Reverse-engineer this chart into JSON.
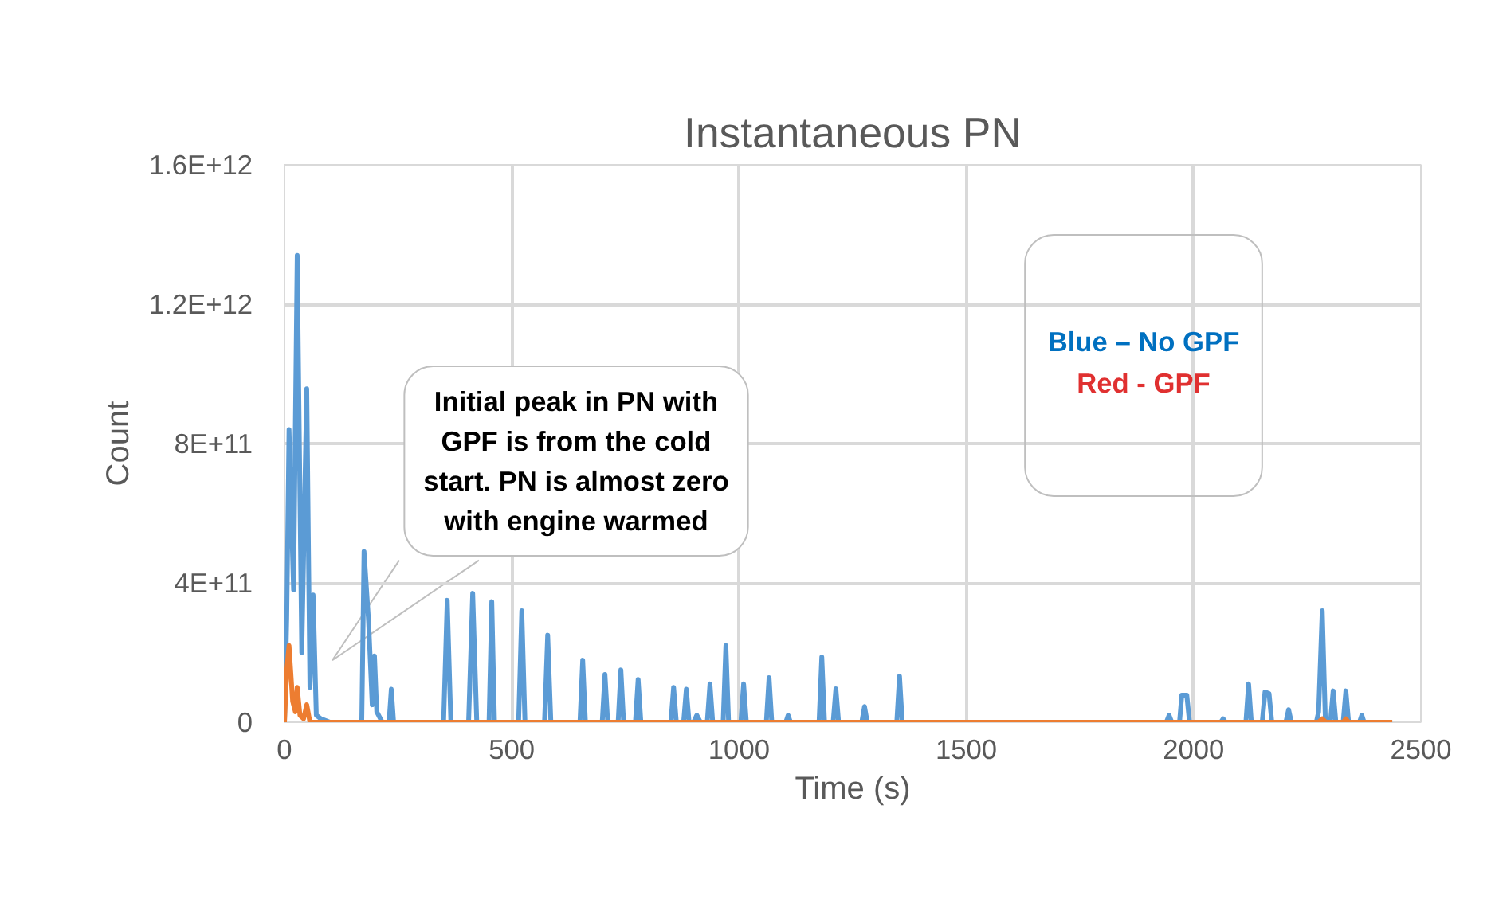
{
  "chart_data": {
    "type": "line",
    "title": "Instantaneous PN",
    "xlabel": "Time (s)",
    "ylabel": "Count",
    "xlim": [
      0,
      2500
    ],
    "xticks": [
      0,
      500,
      1000,
      1500,
      2000,
      2500
    ],
    "ylim": [
      0,
      1600000000000
    ],
    "yticks": [
      {
        "value": 0,
        "label": "0"
      },
      {
        "value": 400000000000,
        "label": "4E+11"
      },
      {
        "value": 800000000000,
        "label": "8E+11"
      },
      {
        "value": 1200000000000,
        "label": "1.2E+12"
      },
      {
        "value": 1600000000000,
        "label": "1.6E+12"
      }
    ],
    "grid": true,
    "marker": "none",
    "line_style": "solid",
    "annotations": [
      "Initial peak in PN with GPF is from the cold start. PN is almost zero with engine warmed",
      "Blue – No GPF",
      "Red - GPF"
    ],
    "series": [
      {
        "color": "#5b9bd5",
        "x": [
          0,
          5,
          10,
          20,
          28,
          38,
          49,
          56,
          63,
          70,
          80,
          100,
          170,
          175,
          185,
          193,
          198,
          203,
          215,
          230,
          235,
          240,
          260,
          350,
          358,
          366,
          405,
          414,
          423,
          450,
          456,
          462,
          515,
          522,
          529,
          572,
          579,
          586,
          650,
          656,
          662,
          699,
          705,
          711,
          734,
          740,
          746,
          772,
          778,
          784,
          850,
          856,
          862,
          878,
          884,
          890,
          900,
          907,
          915,
          930,
          936,
          942,
          965,
          971,
          977,
          1004,
          1010,
          1016,
          1060,
          1066,
          1072,
          1103,
          1108,
          1113,
          1176,
          1182,
          1188,
          1207,
          1213,
          1219,
          1270,
          1276,
          1282,
          1347,
          1353,
          1359,
          1940,
          1946,
          1952,
          1969,
          1974,
          1985,
          1991,
          2060,
          2065,
          2070,
          2115,
          2121,
          2127,
          2151,
          2157,
          2166,
          2172,
          2203,
          2209,
          2215,
          2270,
          2275,
          2283,
          2290,
          2301,
          2307,
          2313,
          2329,
          2335,
          2341,
          2365,
          2370,
          2375,
          2437
        ],
        "values": [
          0,
          300000000000,
          840000000000,
          380000000000,
          1340000000000,
          200000000000,
          957000000000,
          100000000000,
          365000000000,
          20000000000,
          10000000000,
          0,
          0,
          490000000000,
          290000000000,
          50000000000,
          190000000000,
          30000000000,
          0,
          0,
          95000000000,
          0,
          0,
          0,
          350000000000,
          0,
          0,
          370000000000,
          0,
          0,
          346000000000,
          0,
          0,
          320000000000,
          0,
          0,
          250000000000,
          0,
          0,
          178000000000,
          0,
          0,
          137000000000,
          0,
          0,
          150000000000,
          0,
          0,
          123000000000,
          0,
          0,
          100000000000,
          0,
          0,
          95000000000,
          0,
          0,
          20000000000,
          0,
          0,
          110000000000,
          0,
          0,
          220000000000,
          0,
          0,
          110000000000,
          0,
          0,
          128000000000,
          0,
          0,
          20000000000,
          0,
          0,
          187000000000,
          0,
          0,
          96000000000,
          0,
          0,
          45000000000,
          0,
          0,
          132000000000,
          0,
          0,
          20000000000,
          0,
          0,
          78000000000,
          78000000000,
          0,
          0,
          10000000000,
          0,
          0,
          110000000000,
          0,
          0,
          87000000000,
          82000000000,
          0,
          0,
          36000000000,
          0,
          0,
          30000000000,
          320000000000,
          0,
          0,
          90000000000,
          0,
          0,
          90000000000,
          0,
          0,
          20000000000,
          0,
          0
        ]
      },
      {
        "color": "#ed7d31",
        "x": [
          0,
          5,
          10,
          18,
          24,
          28,
          34,
          42,
          49,
          56,
          70,
          2275,
          2283,
          2291,
          2329,
          2335,
          2341,
          2437
        ],
        "values": [
          0,
          150000000000,
          220000000000,
          60000000000,
          30000000000,
          100000000000,
          20000000000,
          10000000000,
          50000000000,
          0,
          0,
          0,
          10000000000,
          0,
          0,
          10000000000,
          0,
          0
        ]
      }
    ]
  }
}
